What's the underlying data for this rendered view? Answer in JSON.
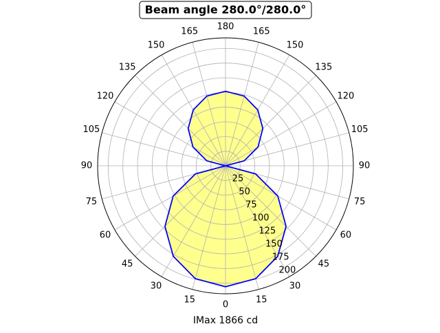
{
  "chart_data": {
    "type": "polar",
    "title": "Beam angle 280.0°/280.0°",
    "xlabel": "IMax 1866 cd",
    "x": [
      0,
      15,
      30,
      45,
      60,
      75,
      90,
      105,
      120,
      135,
      150,
      165,
      180,
      195,
      210,
      225,
      240,
      255,
      270,
      285,
      300,
      315,
      330,
      345,
      360
    ],
    "series": [
      {
        "color": "#0000ff",
        "fill": "#ffff88",
        "values": [
          206,
          199,
          178,
          146,
          103,
          53,
          0,
          33,
          64,
          90,
          110,
          123,
          127,
          123,
          110,
          90,
          64,
          33,
          0,
          53,
          103,
          146,
          178,
          199,
          206
        ]
      }
    ],
    "rlim": [
      0,
      218
    ],
    "rticks": [
      25,
      50,
      75,
      100,
      125,
      150,
      175,
      200
    ],
    "thetaticks": [
      0,
      15,
      30,
      45,
      60,
      75,
      90,
      105,
      120,
      135,
      150,
      165,
      180,
      {
        "value": 195,
        "label": "165"
      },
      {
        "value": 210,
        "label": "150"
      },
      {
        "value": 225,
        "label": "135"
      },
      {
        "value": 240,
        "label": "120"
      },
      {
        "value": 255,
        "label": "105"
      },
      {
        "value": 270,
        "label": "90"
      },
      {
        "value": 285,
        "label": "75"
      },
      {
        "value": 300,
        "label": "60"
      },
      {
        "value": 315,
        "label": "45"
      },
      {
        "value": 330,
        "label": "30"
      },
      {
        "value": 345,
        "label": "15"
      }
    ],
    "grid": true
  }
}
